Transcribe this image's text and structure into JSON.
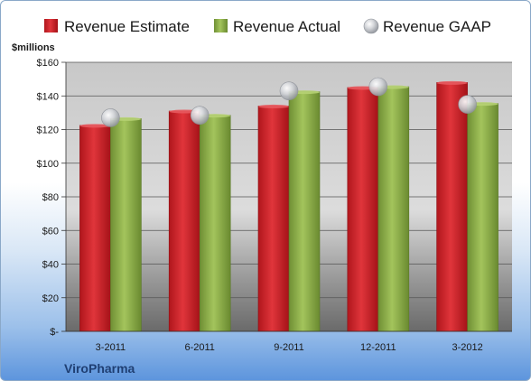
{
  "chart_data": {
    "type": "bar",
    "categories": [
      "3-2011",
      "6-2011",
      "9-2011",
      "12-2011",
      "3-2012"
    ],
    "series": [
      {
        "name": "Revenue Estimate",
        "kind": "bar",
        "color": "#cc2229",
        "values": [
          122.5,
          131,
          134,
          145,
          148
        ]
      },
      {
        "name": "Revenue Actual",
        "kind": "bar",
        "color": "#8fb04a",
        "values": [
          126.5,
          128.5,
          142.5,
          145.5,
          135.5
        ]
      },
      {
        "name": "Revenue GAAP",
        "kind": "marker",
        "color": "#b8bcc4",
        "values": [
          127,
          128.5,
          143,
          145.5,
          135
        ]
      }
    ],
    "ylabel": "$millions",
    "ylim": [
      0,
      160
    ],
    "yticks": [
      0,
      20,
      40,
      60,
      80,
      100,
      120,
      140,
      160
    ],
    "ytick_labels": [
      "$-",
      "$20",
      "$40",
      "$60",
      "$80",
      "$100",
      "$120",
      "$140",
      "$160"
    ],
    "grid": true,
    "legend": "top"
  },
  "footer": {
    "company": "ViroPharma"
  }
}
